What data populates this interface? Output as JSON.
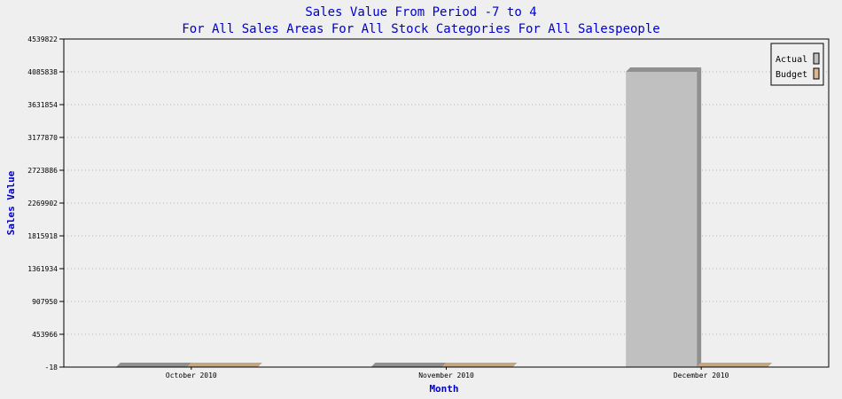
{
  "chart_data": {
    "type": "bar",
    "title": "Sales Value From Period -7 to 4",
    "subtitle": "For All Sales Areas For All Stock Categories For All Salespeople",
    "xlabel": "Month",
    "ylabel": "Sales Value",
    "categories": [
      "October 2010",
      "November 2010",
      "December 2010"
    ],
    "series": [
      {
        "name": "Actual",
        "values": [
          0,
          0,
          4085838
        ],
        "color": "#c0c0c0",
        "shade_color": "#909090"
      },
      {
        "name": "Budget",
        "values": [
          0,
          0,
          0
        ],
        "color": "#d9b88f",
        "shade_color": "#c4a67f"
      }
    ],
    "yticks": [
      "-18",
      "453966",
      "907950",
      "1361934",
      "1815918",
      "2269902",
      "2723886",
      "3177870",
      "3631854",
      "4085838",
      "4539822"
    ],
    "ylim": [
      -18,
      4539822
    ],
    "grid": true,
    "legend_position": "top-right"
  }
}
